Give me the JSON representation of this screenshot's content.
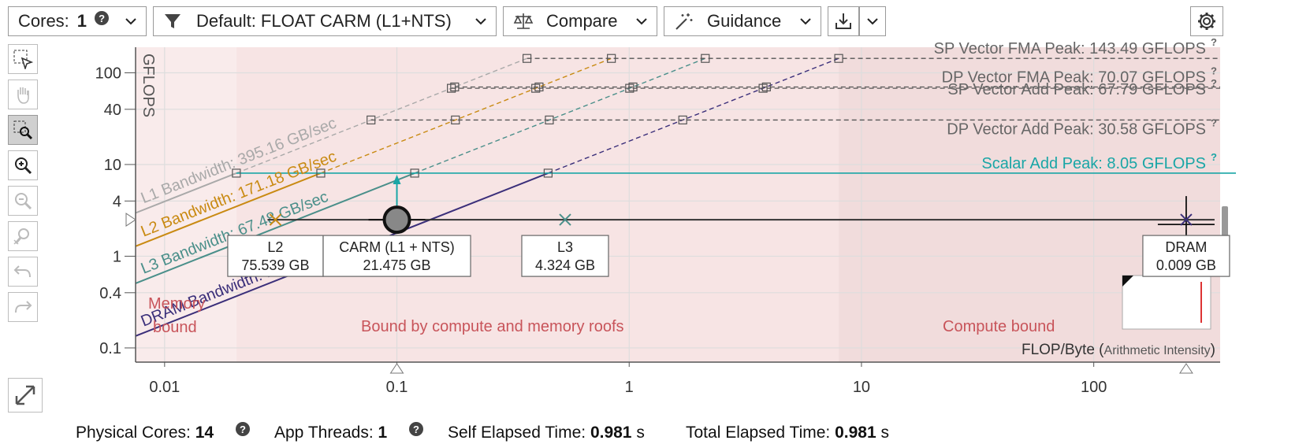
{
  "toolbar": {
    "cores_label": "Cores:",
    "cores_value": "1",
    "filter_label": "Default: FLOAT CARM (L1+NTS)",
    "compare_label": "Compare",
    "guidance_label": "Guidance"
  },
  "sidebar": {
    "tools": [
      "select-tool",
      "pan-tool",
      "zoom-select-tool",
      "zoom-in-tool",
      "zoom-out-tool",
      "zoom-reset-tool",
      "undo-tool",
      "redo-tool"
    ],
    "expand_icon": "expand-icon"
  },
  "status": {
    "physical_cores_label": "Physical Cores:",
    "physical_cores_value": "14",
    "app_threads_label": "App Threads:",
    "app_threads_value": "1",
    "self_elapsed_label": "Self Elapsed Time:",
    "self_elapsed_value": "0.981",
    "self_elapsed_unit": "s",
    "total_elapsed_label": "Total Elapsed Time:",
    "total_elapsed_value": "0.981",
    "total_elapsed_unit": "s"
  },
  "chart_data": {
    "type": "scatter",
    "xscale": "log",
    "yscale": "log",
    "xlim": [
      0.0075,
      350
    ],
    "ylim": [
      0.07,
      190
    ],
    "xlabel_main": "FLOP/Byte",
    "xlabel_paren": "Arithmetic Intensity",
    "ylabel": "GFLOPS",
    "xticks": [
      0.01,
      0.1,
      1,
      10,
      100
    ],
    "xtick_labels": [
      "0.01",
      "0.1",
      "1",
      "10",
      "100"
    ],
    "yticks": [
      0.1,
      0.4,
      1,
      4,
      10,
      40,
      100
    ],
    "ytick_labels": [
      "0.1",
      "0.4",
      "1",
      "4",
      "10",
      "40",
      "100"
    ],
    "roofs_horizontal": [
      {
        "label": "SP Vector FMA Peak: 143.49 GFLOPS",
        "value": 143.49,
        "color": "#555555",
        "dashed": true
      },
      {
        "label": "DP Vector FMA Peak: 70.07 GFLOPS",
        "value": 70.07,
        "color": "#555555",
        "dashed": true
      },
      {
        "label": "SP Vector Add Peak: 67.79 GFLOPS",
        "value": 67.79,
        "color": "#555555",
        "dashed": true
      },
      {
        "label": "DP Vector Add Peak: 30.58 GFLOPS",
        "value": 30.58,
        "color": "#555555",
        "dashed": true
      },
      {
        "label": "Scalar Add Peak: 8.05 GFLOPS",
        "value": 8.05,
        "color": "#1aa6a6",
        "dashed": false
      }
    ],
    "roofs_bandwidth": [
      {
        "label": "L1 Bandwidth: 395.16 GB/sec",
        "value": 395.16,
        "color": "#a9a9a9"
      },
      {
        "label": "L2 Bandwidth: 171.18 GB/sec",
        "value": 171.18,
        "color": "#c98a12"
      },
      {
        "label": "L3 Bandwidth: 67.48 GB/sec",
        "value": 67.48,
        "color": "#4a8f8a"
      },
      {
        "label": "DRAM Bandwidth: 17.98 GB/sec",
        "value": 17.98,
        "color": "#3b2f7a"
      }
    ],
    "points": [
      {
        "name": "L2",
        "x": 0.03,
        "y": 2.5,
        "traffic": "75.539 GB",
        "color": "#c98a12"
      },
      {
        "name": "CARM (L1 + NTS)",
        "x": 0.1,
        "y": 2.5,
        "traffic": "21.475 GB",
        "color": "#333333"
      },
      {
        "name": "L3",
        "x": 0.53,
        "y": 2.5,
        "traffic": "4.324 GB",
        "color": "#4a8f8a"
      },
      {
        "name": "DRAM",
        "x": 250,
        "y": 2.5,
        "traffic": "0.009 GB",
        "color": "#3b2f7a"
      }
    ],
    "regions": [
      {
        "label_line1": "Memory",
        "label_line2": "bound"
      },
      {
        "label": "Bound by compute and memory roofs"
      },
      {
        "label": "Compute bound"
      }
    ],
    "colors": {
      "region_fill": "#f7e4e4",
      "region_compute": "#f1dcdc",
      "region_text": "#c8545a",
      "scalar": "#1aa6a6",
      "grid": "#dddddd"
    }
  }
}
